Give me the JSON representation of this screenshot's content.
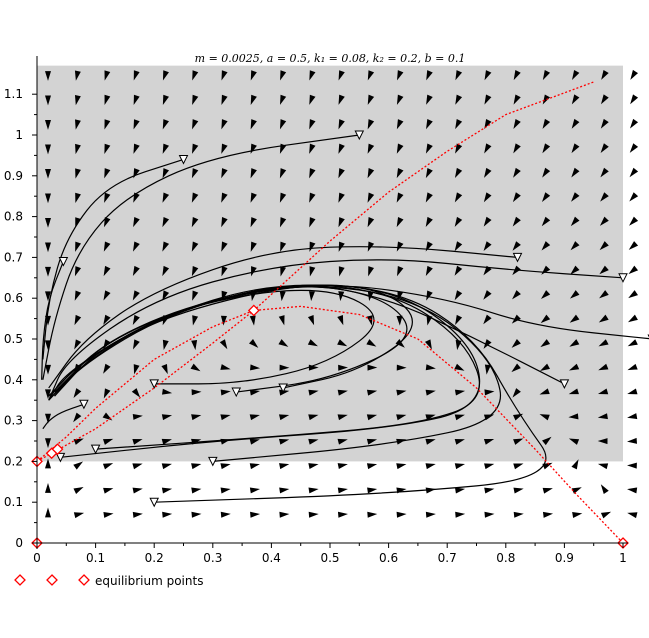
{
  "chart_data": {
    "type": "line",
    "title": "m = 0.0025, a = 0.5, k₁ = 0.08, k₂ = 0.2, b = 0.1",
    "xlim": [
      0,
      1.0
    ],
    "ylim": [
      0,
      1.17
    ],
    "x_ticks": [
      0,
      0.1,
      0.2,
      0.3,
      0.4,
      0.5,
      0.6,
      0.7,
      0.8,
      0.9,
      1
    ],
    "y_ticks": [
      0,
      0.1,
      0.2,
      0.3,
      0.4,
      0.5,
      0.6,
      0.7,
      0.8,
      0.9,
      1,
      1.1
    ],
    "x_tick_labels": [
      "0",
      "0.1",
      "0.2",
      "0.3",
      "0.4",
      "0.5",
      "0.6",
      "0.7",
      "0.8",
      "0.9",
      "1"
    ],
    "y_tick_labels": [
      "0",
      "0.1",
      "0.2",
      "0.3",
      "0.4",
      "0.5",
      "0.6",
      "0.7",
      "0.8",
      "0.9",
      "1",
      "1.1"
    ],
    "shaded_region": {
      "x": [
        0,
        1.0
      ],
      "y": [
        0.2,
        1.17
      ],
      "color": "#d3d3d3"
    },
    "nullclines": [
      {
        "points": [
          [
            0,
            0.2
          ],
          [
            0.05,
            0.26
          ],
          [
            0.1,
            0.33
          ],
          [
            0.2,
            0.45
          ],
          [
            0.3,
            0.53
          ],
          [
            0.37,
            0.57
          ],
          [
            0.45,
            0.58
          ],
          [
            0.55,
            0.56
          ],
          [
            0.65,
            0.5
          ],
          [
            0.75,
            0.38
          ],
          [
            0.85,
            0.23
          ],
          [
            0.92,
            0.12
          ],
          [
            1.0,
            0.0
          ]
        ],
        "color": "#ff0000"
      },
      {
        "points": [
          [
            0,
            0.2
          ],
          [
            0.1,
            0.28
          ],
          [
            0.2,
            0.38
          ],
          [
            0.3,
            0.49
          ],
          [
            0.37,
            0.57
          ],
          [
            0.5,
            0.74
          ],
          [
            0.6,
            0.86
          ],
          [
            0.7,
            0.96
          ],
          [
            0.8,
            1.05
          ],
          [
            0.95,
            1.13
          ]
        ],
        "color": "#ff0000"
      }
    ],
    "trajectories": [
      {
        "start": [
          0.55,
          1.0
        ],
        "points": [
          [
            0.55,
            1.0
          ],
          [
            0.3,
            0.95
          ],
          [
            0.15,
            0.85
          ],
          [
            0.07,
            0.72
          ],
          [
            0.03,
            0.55
          ],
          [
            0.01,
            0.4
          ]
        ]
      },
      {
        "start": [
          0.25,
          0.94
        ],
        "points": [
          [
            0.25,
            0.94
          ],
          [
            0.12,
            0.88
          ],
          [
            0.05,
            0.75
          ],
          [
            0.02,
            0.6
          ],
          [
            0.01,
            0.45
          ]
        ]
      },
      {
        "start": [
          0.045,
          0.69
        ],
        "points": [
          [
            0.045,
            0.69
          ],
          [
            0.02,
            0.6
          ],
          [
            0.01,
            0.5
          ],
          [
            0.008,
            0.4
          ]
        ]
      },
      {
        "start": [
          0.82,
          0.7
        ],
        "points": [
          [
            0.82,
            0.7
          ],
          [
            0.6,
            0.73
          ],
          [
            0.4,
            0.72
          ],
          [
            0.2,
            0.62
          ],
          [
            0.08,
            0.5
          ],
          [
            0.02,
            0.38
          ]
        ]
      },
      {
        "start": [
          1.0,
          0.65
        ],
        "points": [
          [
            1.0,
            0.65
          ],
          [
            0.8,
            0.67
          ],
          [
            0.6,
            0.7
          ],
          [
            0.4,
            0.68
          ],
          [
            0.2,
            0.6
          ],
          [
            0.05,
            0.45
          ],
          [
            0.02,
            0.35
          ]
        ]
      },
      {
        "start": [
          1.05,
          0.5
        ],
        "points": [
          [
            1.05,
            0.5
          ],
          [
            0.85,
            0.53
          ],
          [
            0.7,
            0.6
          ],
          [
            0.5,
            0.64
          ],
          [
            0.3,
            0.6
          ],
          [
            0.12,
            0.5
          ],
          [
            0.03,
            0.37
          ]
        ]
      },
      {
        "start": [
          0.9,
          0.39
        ],
        "points": [
          [
            0.9,
            0.39
          ],
          [
            0.75,
            0.5
          ],
          [
            0.6,
            0.6
          ],
          [
            0.45,
            0.64
          ],
          [
            0.25,
            0.58
          ],
          [
            0.1,
            0.48
          ],
          [
            0.03,
            0.36
          ]
        ]
      },
      {
        "start": [
          0.2,
          0.39
        ],
        "points": [
          [
            0.2,
            0.39
          ],
          [
            0.35,
            0.39
          ],
          [
            0.5,
            0.44
          ],
          [
            0.6,
            0.55
          ],
          [
            0.5,
            0.63
          ],
          [
            0.3,
            0.6
          ],
          [
            0.12,
            0.5
          ],
          [
            0.03,
            0.37
          ]
        ]
      },
      {
        "start": [
          0.34,
          0.37
        ],
        "points": [
          [
            0.34,
            0.37
          ],
          [
            0.5,
            0.4
          ],
          [
            0.65,
            0.5
          ],
          [
            0.6,
            0.6
          ],
          [
            0.45,
            0.64
          ],
          [
            0.25,
            0.58
          ],
          [
            0.08,
            0.45
          ],
          [
            0.02,
            0.36
          ]
        ]
      },
      {
        "start": [
          0.42,
          0.38
        ],
        "points": [
          [
            0.42,
            0.38
          ],
          [
            0.55,
            0.42
          ],
          [
            0.66,
            0.53
          ],
          [
            0.6,
            0.62
          ],
          [
            0.45,
            0.64
          ],
          [
            0.2,
            0.55
          ],
          [
            0.05,
            0.42
          ],
          [
            0.02,
            0.35
          ]
        ]
      },
      {
        "start": [
          0.08,
          0.34
        ],
        "points": [
          [
            0.08,
            0.34
          ],
          [
            0.04,
            0.32
          ],
          [
            0.02,
            0.3
          ],
          [
            0.01,
            0.28
          ]
        ]
      },
      {
        "start": [
          0.1,
          0.23
        ],
        "points": [
          [
            0.1,
            0.23
          ],
          [
            0.4,
            0.26
          ],
          [
            0.65,
            0.29
          ],
          [
            0.77,
            0.35
          ],
          [
            0.73,
            0.5
          ],
          [
            0.6,
            0.62
          ],
          [
            0.4,
            0.64
          ],
          [
            0.2,
            0.55
          ],
          [
            0.07,
            0.43
          ],
          [
            0.02,
            0.35
          ]
        ]
      },
      {
        "start": [
          0.04,
          0.21
        ],
        "points": [
          [
            0.04,
            0.21
          ],
          [
            0.3,
            0.25
          ],
          [
            0.6,
            0.28
          ],
          [
            0.76,
            0.33
          ],
          [
            0.75,
            0.48
          ],
          [
            0.62,
            0.62
          ],
          [
            0.42,
            0.64
          ],
          [
            0.22,
            0.56
          ],
          [
            0.08,
            0.44
          ],
          [
            0.02,
            0.35
          ]
        ]
      },
      {
        "start": [
          0.3,
          0.2
        ],
        "points": [
          [
            0.3,
            0.2
          ],
          [
            0.6,
            0.24
          ],
          [
            0.8,
            0.3
          ],
          [
            0.78,
            0.45
          ],
          [
            0.65,
            0.6
          ],
          [
            0.45,
            0.64
          ],
          [
            0.25,
            0.58
          ],
          [
            0.1,
            0.47
          ],
          [
            0.03,
            0.36
          ]
        ]
      },
      {
        "start": [
          0.2,
          0.1
        ],
        "points": [
          [
            0.2,
            0.1
          ],
          [
            0.6,
            0.12
          ],
          [
            0.9,
            0.16
          ],
          [
            0.82,
            0.32
          ],
          [
            0.75,
            0.5
          ],
          [
            0.62,
            0.62
          ],
          [
            0.42,
            0.64
          ],
          [
            0.22,
            0.56
          ],
          [
            0.08,
            0.45
          ],
          [
            0.02,
            0.36
          ]
        ]
      }
    ],
    "equilibrium_points": [
      [
        0,
        0
      ],
      [
        0.0,
        0.2
      ],
      [
        0.025,
        0.22
      ],
      [
        0.035,
        0.23
      ],
      [
        0.37,
        0.57
      ],
      [
        1.0,
        0.0
      ]
    ],
    "legend": {
      "label": "equilibrium points",
      "placement": "bottom-left",
      "marker": "diamond",
      "marker_color": "#ff0000"
    },
    "colors": {
      "shade": "#d3d3d3",
      "trajectory": "#000000",
      "nullcline": "#ff0000",
      "equilibrium": "#ff0000"
    }
  }
}
